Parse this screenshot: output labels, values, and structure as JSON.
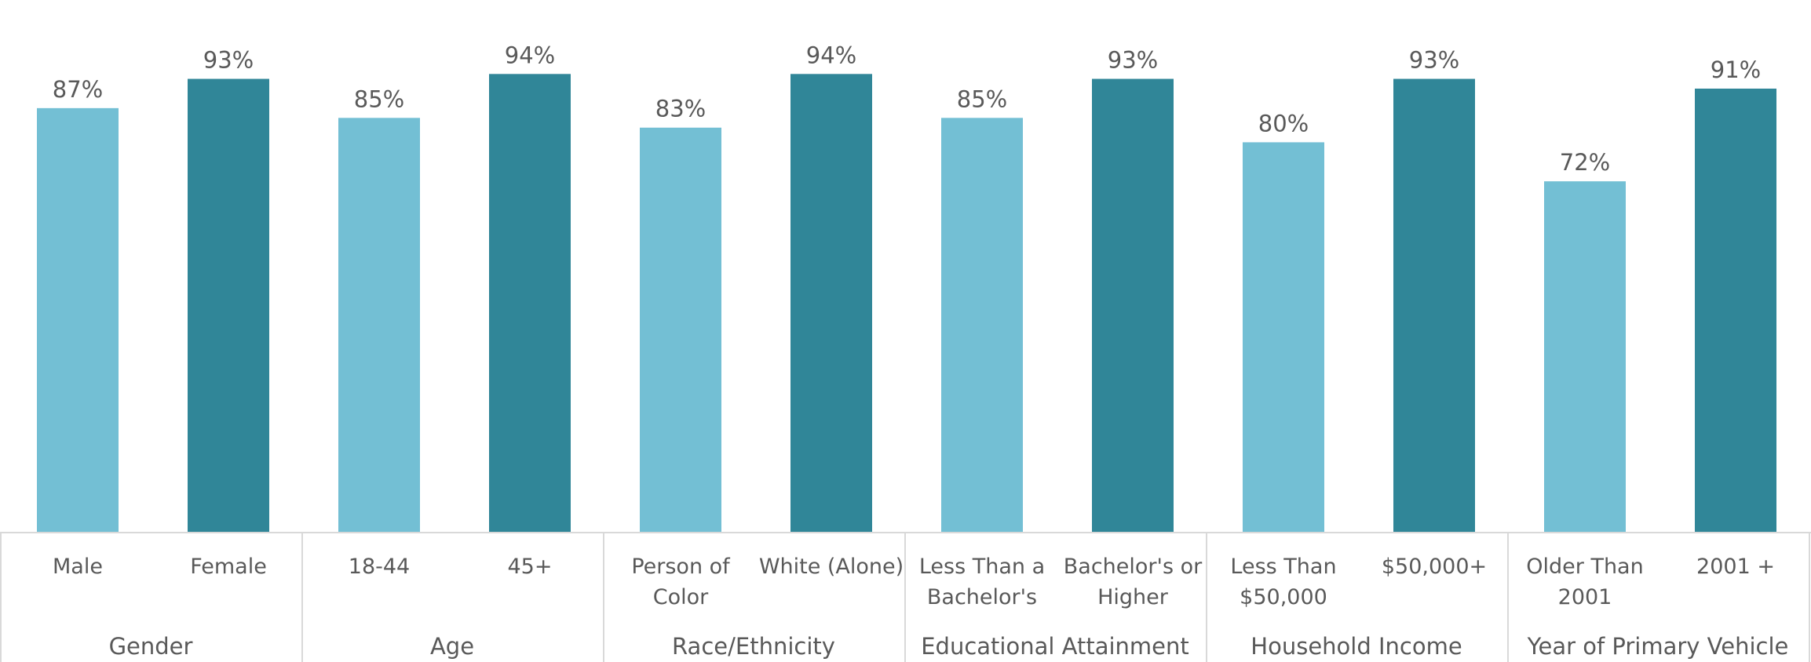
{
  "chart_data": {
    "type": "bar",
    "ylim": [
      0,
      100
    ],
    "grid": false,
    "legend": "none",
    "value_format": "percent",
    "colors": {
      "light": "#73bfd4",
      "dark": "#308698",
      "text": "#595959",
      "axis": "#d9d9d9"
    },
    "groups": [
      {
        "label": "Gender",
        "categories": [
          {
            "label": [
              "Male"
            ],
            "value": 87,
            "shade": "light"
          },
          {
            "label": [
              "Female"
            ],
            "value": 93,
            "shade": "dark"
          }
        ]
      },
      {
        "label": "Age",
        "categories": [
          {
            "label": [
              "18-44"
            ],
            "value": 85,
            "shade": "light"
          },
          {
            "label": [
              "45+"
            ],
            "value": 94,
            "shade": "dark"
          }
        ]
      },
      {
        "label": "Race/Ethnicity",
        "categories": [
          {
            "label": [
              "Person of",
              "Color"
            ],
            "value": 83,
            "shade": "light"
          },
          {
            "label": [
              "White (Alone)"
            ],
            "value": 94,
            "shade": "dark"
          }
        ]
      },
      {
        "label": "Educational Attainment",
        "categories": [
          {
            "label": [
              "Less Than a",
              "Bachelor's"
            ],
            "value": 85,
            "shade": "light"
          },
          {
            "label": [
              "Bachelor's or",
              "Higher"
            ],
            "value": 93,
            "shade": "dark"
          }
        ]
      },
      {
        "label": "Household Income",
        "categories": [
          {
            "label": [
              "Less Than",
              "$50,000"
            ],
            "value": 80,
            "shade": "light"
          },
          {
            "label": [
              "$50,000+"
            ],
            "value": 93,
            "shade": "dark"
          }
        ]
      },
      {
        "label": "Year of Primary Vehicle",
        "categories": [
          {
            "label": [
              "Older Than",
              "2001"
            ],
            "value": 72,
            "shade": "light"
          },
          {
            "label": [
              "2001 +"
            ],
            "value": 91,
            "shade": "dark"
          }
        ]
      }
    ]
  }
}
